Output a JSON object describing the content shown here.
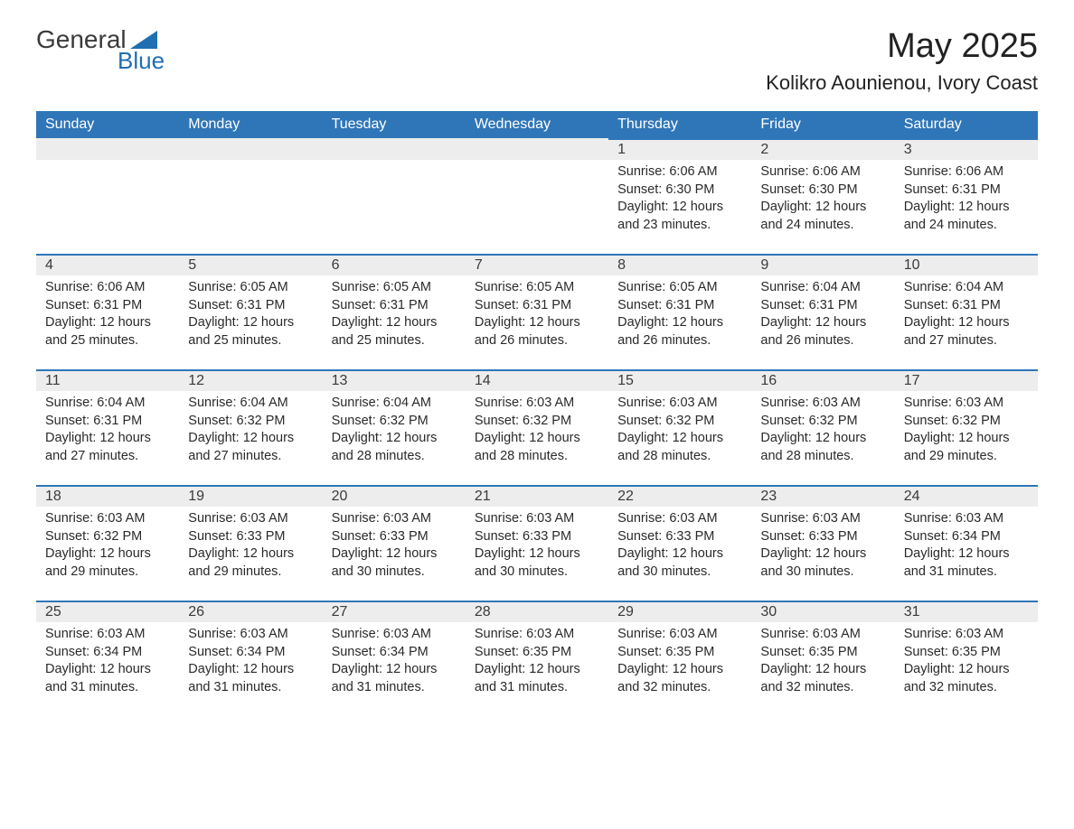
{
  "logo": {
    "top": "General",
    "bottom": "Blue"
  },
  "title": "May 2025",
  "location": "Kolikro Aounienou, Ivory Coast",
  "colors": {
    "header_bg": "#2f76b8",
    "header_text": "#ffffff",
    "daynum_bg": "#ededed",
    "row_border": "#2f76b8",
    "body_text": "#2a2a2a",
    "logo_blue": "#1f6fb2",
    "page_bg": "#ffffff"
  },
  "typography": {
    "title_fontsize": 38,
    "location_fontsize": 22,
    "weekday_fontsize": 16,
    "daynum_fontsize": 16,
    "content_fontsize": 14.5,
    "font_family": "Arial"
  },
  "weekdays": [
    "Sunday",
    "Monday",
    "Tuesday",
    "Wednesday",
    "Thursday",
    "Friday",
    "Saturday"
  ],
  "weeks": [
    [
      {
        "day": "",
        "sunrise": "",
        "sunset": "",
        "daylight": ""
      },
      {
        "day": "",
        "sunrise": "",
        "sunset": "",
        "daylight": ""
      },
      {
        "day": "",
        "sunrise": "",
        "sunset": "",
        "daylight": ""
      },
      {
        "day": "",
        "sunrise": "",
        "sunset": "",
        "daylight": ""
      },
      {
        "day": "1",
        "sunrise": "Sunrise: 6:06 AM",
        "sunset": "Sunset: 6:30 PM",
        "daylight": "Daylight: 12 hours and 23 minutes."
      },
      {
        "day": "2",
        "sunrise": "Sunrise: 6:06 AM",
        "sunset": "Sunset: 6:30 PM",
        "daylight": "Daylight: 12 hours and 24 minutes."
      },
      {
        "day": "3",
        "sunrise": "Sunrise: 6:06 AM",
        "sunset": "Sunset: 6:31 PM",
        "daylight": "Daylight: 12 hours and 24 minutes."
      }
    ],
    [
      {
        "day": "4",
        "sunrise": "Sunrise: 6:06 AM",
        "sunset": "Sunset: 6:31 PM",
        "daylight": "Daylight: 12 hours and 25 minutes."
      },
      {
        "day": "5",
        "sunrise": "Sunrise: 6:05 AM",
        "sunset": "Sunset: 6:31 PM",
        "daylight": "Daylight: 12 hours and 25 minutes."
      },
      {
        "day": "6",
        "sunrise": "Sunrise: 6:05 AM",
        "sunset": "Sunset: 6:31 PM",
        "daylight": "Daylight: 12 hours and 25 minutes."
      },
      {
        "day": "7",
        "sunrise": "Sunrise: 6:05 AM",
        "sunset": "Sunset: 6:31 PM",
        "daylight": "Daylight: 12 hours and 26 minutes."
      },
      {
        "day": "8",
        "sunrise": "Sunrise: 6:05 AM",
        "sunset": "Sunset: 6:31 PM",
        "daylight": "Daylight: 12 hours and 26 minutes."
      },
      {
        "day": "9",
        "sunrise": "Sunrise: 6:04 AM",
        "sunset": "Sunset: 6:31 PM",
        "daylight": "Daylight: 12 hours and 26 minutes."
      },
      {
        "day": "10",
        "sunrise": "Sunrise: 6:04 AM",
        "sunset": "Sunset: 6:31 PM",
        "daylight": "Daylight: 12 hours and 27 minutes."
      }
    ],
    [
      {
        "day": "11",
        "sunrise": "Sunrise: 6:04 AM",
        "sunset": "Sunset: 6:31 PM",
        "daylight": "Daylight: 12 hours and 27 minutes."
      },
      {
        "day": "12",
        "sunrise": "Sunrise: 6:04 AM",
        "sunset": "Sunset: 6:32 PM",
        "daylight": "Daylight: 12 hours and 27 minutes."
      },
      {
        "day": "13",
        "sunrise": "Sunrise: 6:04 AM",
        "sunset": "Sunset: 6:32 PM",
        "daylight": "Daylight: 12 hours and 28 minutes."
      },
      {
        "day": "14",
        "sunrise": "Sunrise: 6:03 AM",
        "sunset": "Sunset: 6:32 PM",
        "daylight": "Daylight: 12 hours and 28 minutes."
      },
      {
        "day": "15",
        "sunrise": "Sunrise: 6:03 AM",
        "sunset": "Sunset: 6:32 PM",
        "daylight": "Daylight: 12 hours and 28 minutes."
      },
      {
        "day": "16",
        "sunrise": "Sunrise: 6:03 AM",
        "sunset": "Sunset: 6:32 PM",
        "daylight": "Daylight: 12 hours and 28 minutes."
      },
      {
        "day": "17",
        "sunrise": "Sunrise: 6:03 AM",
        "sunset": "Sunset: 6:32 PM",
        "daylight": "Daylight: 12 hours and 29 minutes."
      }
    ],
    [
      {
        "day": "18",
        "sunrise": "Sunrise: 6:03 AM",
        "sunset": "Sunset: 6:32 PM",
        "daylight": "Daylight: 12 hours and 29 minutes."
      },
      {
        "day": "19",
        "sunrise": "Sunrise: 6:03 AM",
        "sunset": "Sunset: 6:33 PM",
        "daylight": "Daylight: 12 hours and 29 minutes."
      },
      {
        "day": "20",
        "sunrise": "Sunrise: 6:03 AM",
        "sunset": "Sunset: 6:33 PM",
        "daylight": "Daylight: 12 hours and 30 minutes."
      },
      {
        "day": "21",
        "sunrise": "Sunrise: 6:03 AM",
        "sunset": "Sunset: 6:33 PM",
        "daylight": "Daylight: 12 hours and 30 minutes."
      },
      {
        "day": "22",
        "sunrise": "Sunrise: 6:03 AM",
        "sunset": "Sunset: 6:33 PM",
        "daylight": "Daylight: 12 hours and 30 minutes."
      },
      {
        "day": "23",
        "sunrise": "Sunrise: 6:03 AM",
        "sunset": "Sunset: 6:33 PM",
        "daylight": "Daylight: 12 hours and 30 minutes."
      },
      {
        "day": "24",
        "sunrise": "Sunrise: 6:03 AM",
        "sunset": "Sunset: 6:34 PM",
        "daylight": "Daylight: 12 hours and 31 minutes."
      }
    ],
    [
      {
        "day": "25",
        "sunrise": "Sunrise: 6:03 AM",
        "sunset": "Sunset: 6:34 PM",
        "daylight": "Daylight: 12 hours and 31 minutes."
      },
      {
        "day": "26",
        "sunrise": "Sunrise: 6:03 AM",
        "sunset": "Sunset: 6:34 PM",
        "daylight": "Daylight: 12 hours and 31 minutes."
      },
      {
        "day": "27",
        "sunrise": "Sunrise: 6:03 AM",
        "sunset": "Sunset: 6:34 PM",
        "daylight": "Daylight: 12 hours and 31 minutes."
      },
      {
        "day": "28",
        "sunrise": "Sunrise: 6:03 AM",
        "sunset": "Sunset: 6:35 PM",
        "daylight": "Daylight: 12 hours and 31 minutes."
      },
      {
        "day": "29",
        "sunrise": "Sunrise: 6:03 AM",
        "sunset": "Sunset: 6:35 PM",
        "daylight": "Daylight: 12 hours and 32 minutes."
      },
      {
        "day": "30",
        "sunrise": "Sunrise: 6:03 AM",
        "sunset": "Sunset: 6:35 PM",
        "daylight": "Daylight: 12 hours and 32 minutes."
      },
      {
        "day": "31",
        "sunrise": "Sunrise: 6:03 AM",
        "sunset": "Sunset: 6:35 PM",
        "daylight": "Daylight: 12 hours and 32 minutes."
      }
    ]
  ]
}
